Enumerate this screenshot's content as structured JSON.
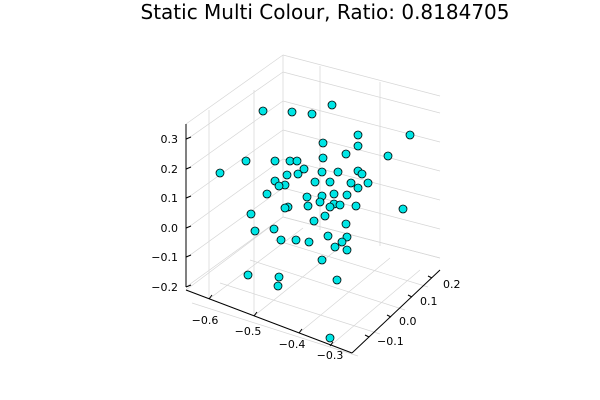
{
  "chart_data": {
    "type": "scatter",
    "title": "Static Multi Colour, Ratio: 0.8184705",
    "xlabel": "",
    "ylabel": "",
    "zlabel": "",
    "colors": {
      "marker": "#00e5e5",
      "marker_stroke": "#000000"
    },
    "axes": {
      "x": {
        "ticks": [
          -0.6,
          -0.5,
          -0.4,
          -0.3
        ],
        "tick_labels": [
          "−0.6",
          "−0.5",
          "−0.4",
          "−0.3"
        ]
      },
      "y": {
        "ticks": [
          -0.1,
          0.0,
          0.1,
          0.2
        ],
        "tick_labels": [
          "−0.1",
          "0.0",
          "0.1",
          "0.2"
        ]
      },
      "z": {
        "ticks": [
          -0.2,
          -0.1,
          0.0,
          0.1,
          0.2,
          0.3
        ],
        "tick_labels": [
          "−0.2",
          "−0.1",
          "0.0",
          "0.1",
          "0.2",
          "0.3"
        ]
      }
    },
    "grid": true,
    "legend": "none",
    "points_screen_est": [
      [
        263,
        111
      ],
      [
        292,
        112
      ],
      [
        312,
        114
      ],
      [
        332,
        105
      ],
      [
        358,
        135
      ],
      [
        410,
        135
      ],
      [
        323,
        143
      ],
      [
        358,
        146
      ],
      [
        388,
        156
      ],
      [
        346,
        154
      ],
      [
        220,
        173
      ],
      [
        246,
        161
      ],
      [
        275,
        161
      ],
      [
        290,
        161
      ],
      [
        297,
        161
      ],
      [
        323,
        158
      ],
      [
        358,
        171
      ],
      [
        362,
        174
      ],
      [
        287,
        175
      ],
      [
        298,
        174
      ],
      [
        304,
        169
      ],
      [
        322,
        172
      ],
      [
        338,
        172
      ],
      [
        275,
        181
      ],
      [
        285,
        185
      ],
      [
        279,
        186
      ],
      [
        315,
        182
      ],
      [
        351,
        183
      ],
      [
        368,
        183
      ],
      [
        358,
        188
      ],
      [
        330,
        182
      ],
      [
        267,
        194
      ],
      [
        307,
        197
      ],
      [
        322,
        196
      ],
      [
        334,
        194
      ],
      [
        347,
        195
      ],
      [
        320,
        202
      ],
      [
        334,
        204
      ],
      [
        340,
        205
      ],
      [
        330,
        207
      ],
      [
        356,
        206
      ],
      [
        308,
        206
      ],
      [
        288,
        207
      ],
      [
        285,
        208
      ],
      [
        403,
        209
      ],
      [
        251,
        214
      ],
      [
        325,
        216
      ],
      [
        346,
        224
      ],
      [
        314,
        221
      ],
      [
        255,
        231
      ],
      [
        274,
        229
      ],
      [
        328,
        236
      ],
      [
        347,
        237
      ],
      [
        342,
        242
      ],
      [
        296,
        240
      ],
      [
        281,
        240
      ],
      [
        309,
        242
      ],
      [
        335,
        247
      ],
      [
        347,
        250
      ],
      [
        322,
        260
      ],
      [
        248,
        275
      ],
      [
        279,
        277
      ],
      [
        278,
        286
      ],
      [
        337,
        280
      ],
      [
        330,
        338
      ]
    ]
  }
}
